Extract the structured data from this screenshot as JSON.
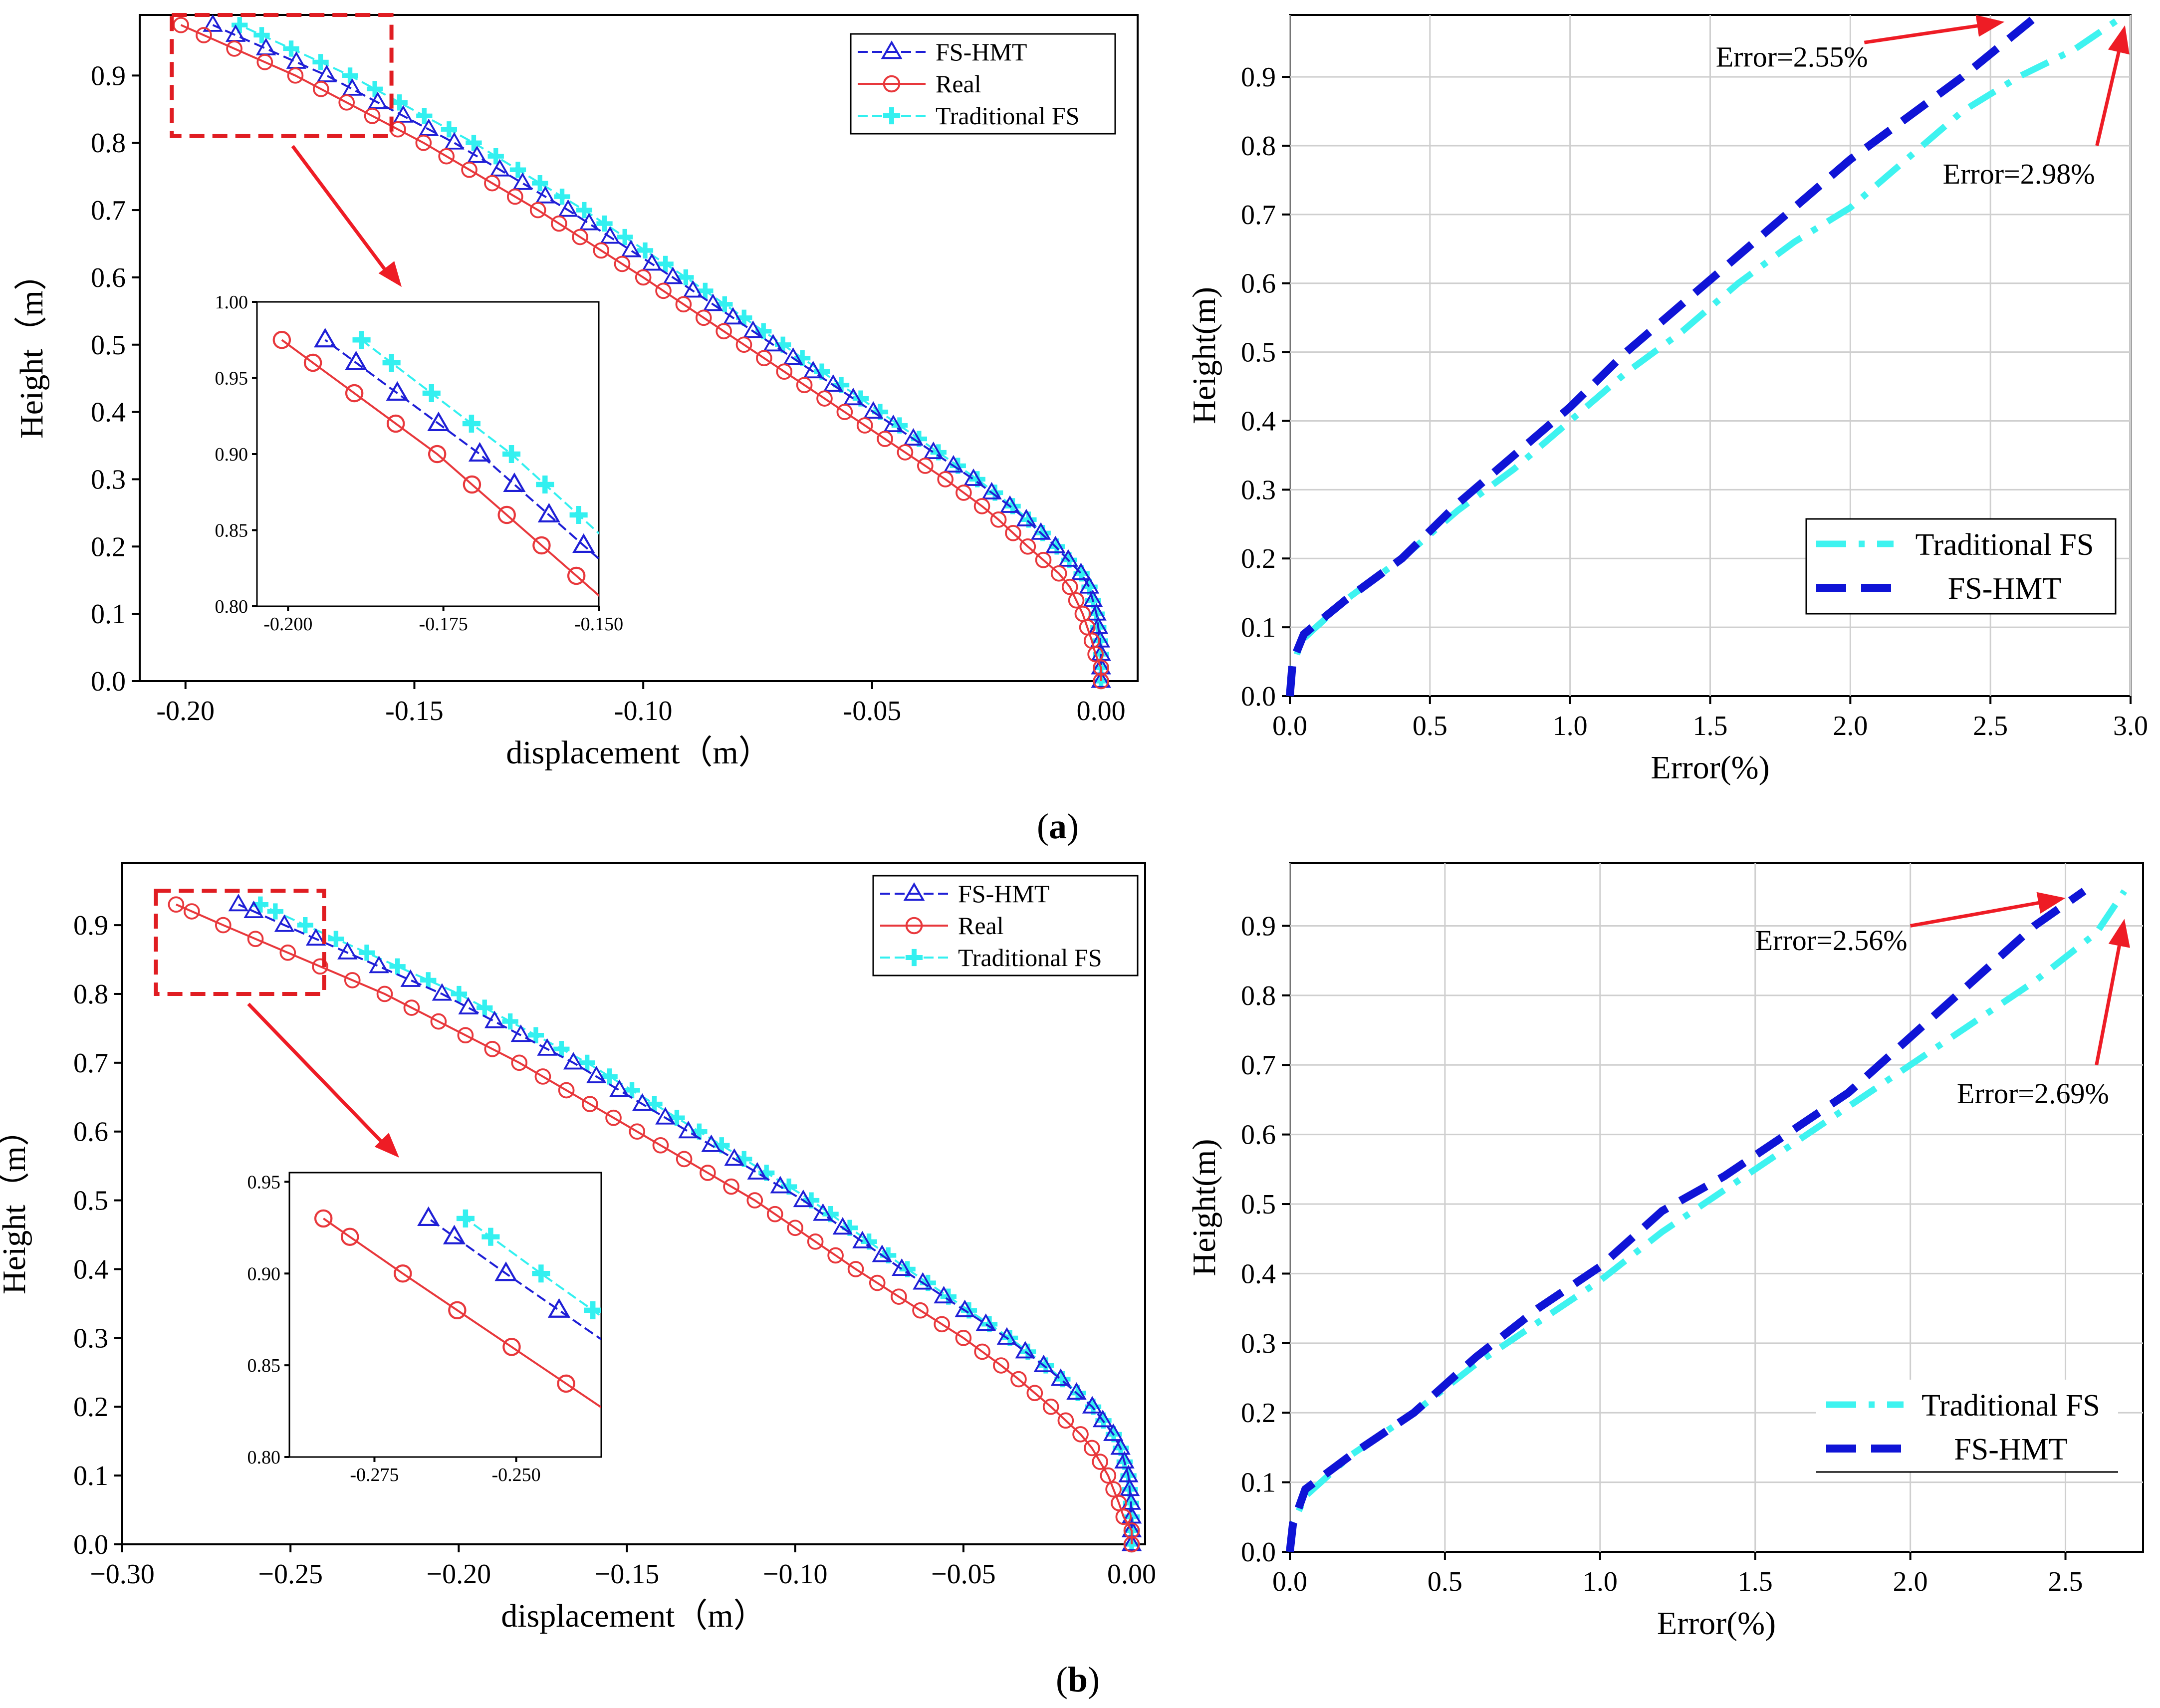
{
  "colors": {
    "fs_hmt": "#1f1fd6",
    "real": "#e8383c",
    "traditional_fs": "#33f0f0",
    "error_fs_hmt": "#0f14d6",
    "error_traditional": "#3ef3f0",
    "annotation": "#ee1c25",
    "highlight_box": "#e01d22"
  },
  "panel_labels": {
    "a": "(a)",
    "b": "(b)",
    "a_letter": "a",
    "b_letter": "b"
  },
  "chart_data": [
    {
      "id": "a_left",
      "type": "line",
      "title": "",
      "xlabel": "displacement（m）",
      "ylabel": "Height（m）",
      "xlim": [
        -0.21,
        0.008
      ],
      "ylim": [
        0.0,
        0.99
      ],
      "xticks": [
        -0.2,
        -0.15,
        -0.1,
        -0.05,
        0.0
      ],
      "xtick_labels": [
        "-0.20",
        "-0.15",
        "-0.10",
        "-0.05",
        "0.00"
      ],
      "yticks": [
        0.0,
        0.1,
        0.2,
        0.3,
        0.4,
        0.5,
        0.6,
        0.7,
        0.8,
        0.9
      ],
      "ytick_labels": [
        "0.0",
        "0.1",
        "0.2",
        "0.3",
        "0.4",
        "0.5",
        "0.6",
        "0.7",
        "0.8",
        "0.9"
      ],
      "y_samples": [
        0.0,
        0.02,
        0.04,
        0.06,
        0.08,
        0.1,
        0.12,
        0.14,
        0.16,
        0.18,
        0.2,
        0.22,
        0.24,
        0.26,
        0.28,
        0.3,
        0.32,
        0.34,
        0.36,
        0.38,
        0.4,
        0.42,
        0.44,
        0.46,
        0.48,
        0.5,
        0.52,
        0.54,
        0.56,
        0.58,
        0.6,
        0.62,
        0.64,
        0.66,
        0.68,
        0.7,
        0.72,
        0.74,
        0.76,
        0.78,
        0.8,
        0.82,
        0.84,
        0.86,
        0.88,
        0.9,
        0.92,
        0.94,
        0.96,
        0.975
      ],
      "curve_profile": [
        [
          0.0,
          0.0
        ],
        [
          0.05,
          0.0
        ],
        [
          0.1,
          0.001
        ],
        [
          0.15,
          0.003
        ],
        [
          0.2,
          0.01
        ],
        [
          0.25,
          0.018
        ],
        [
          0.3,
          0.028
        ],
        [
          0.4,
          0.05
        ],
        [
          0.5,
          0.072
        ],
        [
          0.6,
          0.094
        ],
        [
          0.7,
          0.117
        ],
        [
          0.8,
          0.142
        ],
        [
          0.9,
          0.17
        ],
        [
          0.975,
          0.195
        ]
      ],
      "series": [
        {
          "name": "FS-HMT",
          "marker": "triangle",
          "line": "dash",
          "color_key": "fs_hmt",
          "x_scale": 0.995,
          "offset": 0.0,
          "marker_ymin": 0.0
        },
        {
          "name": "Real",
          "marker": "circle",
          "line": "solid",
          "color_key": "real",
          "x_scale": 1.0,
          "offset": -0.006,
          "marker_ymin": 0.0
        },
        {
          "name": "Traditional FS",
          "marker": "cross",
          "line": "dash",
          "color_key": "traditional_fs",
          "x_scale": 0.965,
          "offset": 0.0,
          "marker_ymin": 0.0
        }
      ],
      "legend": {
        "position": "top-right",
        "labels": [
          "FS-HMT",
          "Real",
          "Traditional FS"
        ]
      },
      "inset": {
        "xlim": [
          -0.205,
          -0.15
        ],
        "ylim": [
          0.8,
          1.0
        ],
        "xticks": [
          -0.2,
          -0.175,
          -0.15
        ],
        "xtick_labels": [
          "-0.200",
          "-0.175",
          "-0.150"
        ],
        "yticks": [
          0.8,
          0.85,
          0.9,
          0.95,
          1.0
        ],
        "ytick_labels": [
          "0.80",
          "0.85",
          "0.90",
          "0.95",
          "1.00"
        ],
        "y_from": 0.8
      },
      "zoom_region": {
        "x": [
          -0.203,
          -0.155
        ],
        "y": [
          0.81,
          0.99
        ]
      }
    },
    {
      "id": "a_right",
      "type": "line",
      "title": "",
      "xlabel": "Error(%)",
      "ylabel": "Height(m)",
      "xlim": [
        0.0,
        3.0
      ],
      "ylim": [
        0.0,
        0.99
      ],
      "xticks": [
        0.0,
        0.5,
        1.0,
        1.5,
        2.0,
        2.5,
        3.0
      ],
      "xtick_labels": [
        "0.0",
        "0.5",
        "1.0",
        "1.5",
        "2.0",
        "2.5",
        "3.0"
      ],
      "yticks": [
        0.0,
        0.1,
        0.2,
        0.3,
        0.4,
        0.5,
        0.6,
        0.7,
        0.8,
        0.9
      ],
      "ytick_labels": [
        "0.0",
        "0.1",
        "0.2",
        "0.3",
        "0.4",
        "0.5",
        "0.6",
        "0.7",
        "0.8",
        "0.9"
      ],
      "grid": true,
      "series": [
        {
          "name": "Traditional FS",
          "line": "dashdot",
          "color_key": "error_traditional",
          "points": [
            [
              0.0,
              0.0
            ],
            [
              0.01,
              0.04
            ],
            [
              0.04,
              0.08
            ],
            [
              0.2,
              0.14
            ],
            [
              0.4,
              0.2
            ],
            [
              0.6,
              0.27
            ],
            [
              0.8,
              0.33
            ],
            [
              1.0,
              0.4
            ],
            [
              1.2,
              0.47
            ],
            [
              1.4,
              0.53
            ],
            [
              1.6,
              0.6
            ],
            [
              1.8,
              0.66
            ],
            [
              2.0,
              0.71
            ],
            [
              2.2,
              0.78
            ],
            [
              2.4,
              0.85
            ],
            [
              2.6,
              0.9
            ],
            [
              2.8,
              0.94
            ],
            [
              2.98,
              0.99
            ]
          ]
        },
        {
          "name": "FS-HMT",
          "line": "dash",
          "color_key": "error_fs_hmt",
          "points": [
            [
              0.0,
              0.0
            ],
            [
              0.01,
              0.05
            ],
            [
              0.05,
              0.09
            ],
            [
              0.2,
              0.14
            ],
            [
              0.4,
              0.2
            ],
            [
              0.6,
              0.28
            ],
            [
              0.8,
              0.35
            ],
            [
              1.0,
              0.42
            ],
            [
              1.2,
              0.5
            ],
            [
              1.4,
              0.57
            ],
            [
              1.6,
              0.64
            ],
            [
              1.8,
              0.71
            ],
            [
              2.0,
              0.78
            ],
            [
              2.2,
              0.84
            ],
            [
              2.4,
              0.9
            ],
            [
              2.55,
              0.95
            ],
            [
              2.67,
              0.99
            ]
          ]
        }
      ],
      "legend": {
        "position": "lower-right",
        "labels": [
          "Traditional FS",
          "FS-HMT"
        ]
      },
      "annotations": [
        {
          "text": "Error=2.55%",
          "text_x": 1.52,
          "text_y": 0.915,
          "arrow_from": [
            2.05,
            0.95
          ],
          "arrow_to": [
            2.55,
            0.98
          ]
        },
        {
          "text": "Error=2.98%",
          "text_x": 2.33,
          "text_y": 0.745,
          "arrow_from": [
            2.88,
            0.8
          ],
          "arrow_to": [
            2.98,
            0.975
          ]
        }
      ]
    },
    {
      "id": "b_left",
      "type": "line",
      "title": "",
      "xlabel": "displacement（m）",
      "ylabel": "Height（m）",
      "xlim": [
        -0.3,
        0.004
      ],
      "ylim": [
        0.0,
        0.99
      ],
      "xticks": [
        -0.3,
        -0.25,
        -0.2,
        -0.15,
        -0.1,
        -0.05,
        0.0
      ],
      "xtick_labels": [
        "−0.30",
        "−0.25",
        "−0.20",
        "−0.15",
        "−0.10",
        "−0.05",
        "0.00"
      ],
      "yticks": [
        0.0,
        0.1,
        0.2,
        0.3,
        0.4,
        0.5,
        0.6,
        0.7,
        0.8,
        0.9
      ],
      "ytick_labels": [
        "0.0",
        "0.1",
        "0.2",
        "0.3",
        "0.4",
        "0.5",
        "0.6",
        "0.7",
        "0.8",
        "0.9"
      ],
      "y_samples": [
        0.0,
        0.02,
        0.04,
        0.06,
        0.08,
        0.1,
        0.12,
        0.14,
        0.16,
        0.18,
        0.2,
        0.22,
        0.24,
        0.26,
        0.28,
        0.3,
        0.32,
        0.34,
        0.36,
        0.38,
        0.4,
        0.42,
        0.44,
        0.46,
        0.48,
        0.5,
        0.52,
        0.54,
        0.56,
        0.58,
        0.6,
        0.62,
        0.64,
        0.66,
        0.68,
        0.7,
        0.72,
        0.74,
        0.76,
        0.78,
        0.8,
        0.82,
        0.84,
        0.86,
        0.88,
        0.9,
        0.92,
        0.93
      ],
      "curve_profile": [
        [
          0.0,
          0.0
        ],
        [
          0.05,
          0.0
        ],
        [
          0.1,
          0.001
        ],
        [
          0.15,
          0.004
        ],
        [
          0.2,
          0.012
        ],
        [
          0.25,
          0.024
        ],
        [
          0.3,
          0.038
        ],
        [
          0.4,
          0.07
        ],
        [
          0.5,
          0.1
        ],
        [
          0.6,
          0.135
        ],
        [
          0.7,
          0.17
        ],
        [
          0.8,
          0.21
        ],
        [
          0.9,
          0.258
        ],
        [
          0.93,
          0.272
        ]
      ],
      "series": [
        {
          "name": "FS-HMT",
          "marker": "triangle",
          "line": "dash",
          "color_key": "fs_hmt",
          "x_scale": 0.976,
          "offset": 0.0,
          "marker_ymin": 0.0
        },
        {
          "name": "Real",
          "marker": "circle",
          "line": "solid",
          "color_key": "real",
          "x_scale": 1.0,
          "offset": -0.012,
          "marker_ymin": 0.0
        },
        {
          "name": "Traditional FS",
          "marker": "cross",
          "line": "dash",
          "color_key": "traditional_fs",
          "x_scale": 0.952,
          "offset": 0.0,
          "marker_ymin": 0.0
        }
      ],
      "legend": {
        "position": "top-right",
        "labels": [
          "FS-HMT",
          "Real",
          "Traditional FS"
        ]
      },
      "inset": {
        "xlim": [
          -0.29,
          -0.235
        ],
        "ylim": [
          0.8,
          0.955
        ],
        "xticks": [
          -0.275,
          -0.25
        ],
        "xtick_labels": [
          "-0.275",
          "-0.250"
        ],
        "yticks": [
          0.8,
          0.85,
          0.9,
          0.95
        ],
        "ytick_labels": [
          "0.80",
          "0.85",
          "0.90",
          "0.95"
        ],
        "y_from": 0.8
      },
      "zoom_region": {
        "x": [
          -0.29,
          -0.24
        ],
        "y": [
          0.8,
          0.95
        ]
      }
    },
    {
      "id": "b_right",
      "type": "line",
      "title": "",
      "xlabel": "Error(%)",
      "ylabel": "Height(m)",
      "xlim": [
        0.0,
        2.75
      ],
      "ylim": [
        0.0,
        0.99
      ],
      "xticks": [
        0.0,
        0.5,
        1.0,
        1.5,
        2.0,
        2.5
      ],
      "xtick_labels": [
        "0.0",
        "0.5",
        "1.0",
        "1.5",
        "2.0",
        "2.5"
      ],
      "yticks": [
        0.0,
        0.1,
        0.2,
        0.3,
        0.4,
        0.5,
        0.6,
        0.7,
        0.8,
        0.9
      ],
      "ytick_labels": [
        "0.0",
        "0.1",
        "0.2",
        "0.3",
        "0.4",
        "0.5",
        "0.6",
        "0.7",
        "0.8",
        "0.9"
      ],
      "grid": true,
      "series": [
        {
          "name": "Traditional FS",
          "line": "dashdot",
          "color_key": "error_traditional",
          "points": [
            [
              0.0,
              0.0
            ],
            [
              0.01,
              0.04
            ],
            [
              0.05,
              0.08
            ],
            [
              0.2,
              0.14
            ],
            [
              0.4,
              0.2
            ],
            [
              0.6,
              0.27
            ],
            [
              0.8,
              0.33
            ],
            [
              1.0,
              0.39
            ],
            [
              1.2,
              0.46
            ],
            [
              1.4,
              0.52
            ],
            [
              1.6,
              0.58
            ],
            [
              1.8,
              0.64
            ],
            [
              2.0,
              0.7
            ],
            [
              2.2,
              0.76
            ],
            [
              2.4,
              0.82
            ],
            [
              2.6,
              0.89
            ],
            [
              2.69,
              0.95
            ]
          ]
        },
        {
          "name": "FS-HMT",
          "line": "dash",
          "color_key": "error_fs_hmt",
          "points": [
            [
              0.0,
              0.0
            ],
            [
              0.01,
              0.04
            ],
            [
              0.05,
              0.09
            ],
            [
              0.2,
              0.14
            ],
            [
              0.4,
              0.2
            ],
            [
              0.6,
              0.28
            ],
            [
              0.8,
              0.35
            ],
            [
              1.0,
              0.41
            ],
            [
              1.2,
              0.49
            ],
            [
              1.4,
              0.54
            ],
            [
              1.6,
              0.6
            ],
            [
              1.8,
              0.66
            ],
            [
              2.0,
              0.74
            ],
            [
              2.2,
              0.82
            ],
            [
              2.4,
              0.9
            ],
            [
              2.56,
              0.95
            ]
          ]
        }
      ],
      "legend": {
        "position": "lower-right",
        "labels": [
          "Traditional FS",
          "FS-HMT"
        ]
      },
      "annotations": [
        {
          "text": "Error=2.56%",
          "text_x": 1.5,
          "text_y": 0.865,
          "arrow_from": [
            2.0,
            0.9
          ],
          "arrow_to": [
            2.5,
            0.94
          ]
        },
        {
          "text": "Error=2.69%",
          "text_x": 2.15,
          "text_y": 0.645,
          "arrow_from": [
            2.6,
            0.7
          ],
          "arrow_to": [
            2.69,
            0.91
          ]
        }
      ]
    }
  ]
}
